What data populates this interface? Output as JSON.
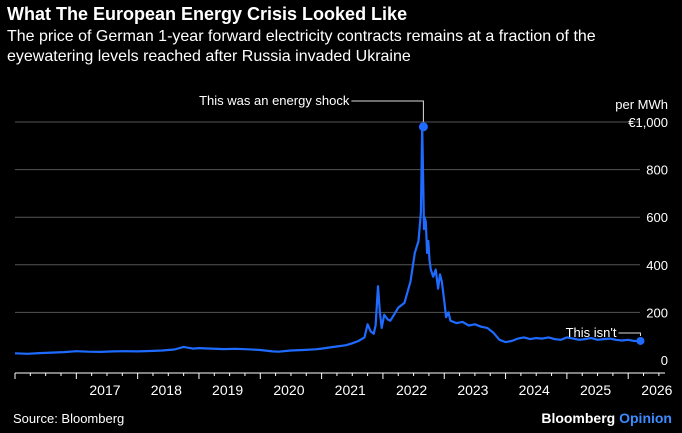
{
  "header": {
    "title": "What The European Energy Crisis Looked Like",
    "subtitle": "The price of German 1-year forward electricity contracts remains at a fraction of the eyewatering levels reached after Russia invaded Ukraine"
  },
  "footer": {
    "source": "Source: Bloomberg",
    "brand": "Bloomberg",
    "brand_suffix": "Opinion"
  },
  "colors": {
    "line": "#1f6bff",
    "grid": "#555555",
    "text": "#ffffff",
    "brand_accent": "#3c8cff"
  },
  "chart_data": {
    "type": "line",
    "title": "What The European Energy Crisis Looked Like",
    "unit_label": "per MWh",
    "ylim": [
      0,
      1000
    ],
    "xlim": [
      2016.0,
      2026.6
    ],
    "yticks": [
      0,
      200,
      400,
      600,
      800,
      1000
    ],
    "ytick_labels": [
      "0",
      "200",
      "400",
      "600",
      "800",
      "€1,000"
    ],
    "xticks": [
      2017,
      2018,
      2019,
      2020,
      2021,
      2022,
      2023,
      2024,
      2025,
      2026
    ],
    "xtick_labels": [
      "2017",
      "2018",
      "2019",
      "2020",
      "2021",
      "2022",
      "2023",
      "2024",
      "2025",
      "2026"
    ],
    "series": [
      {
        "name": "German 1-year forward electricity (€/MWh)",
        "x": [
          2016.0,
          2016.2,
          2016.4,
          2016.6,
          2016.8,
          2017.0,
          2017.2,
          2017.4,
          2017.6,
          2017.8,
          2018.0,
          2018.2,
          2018.4,
          2018.6,
          2018.75,
          2018.9,
          2019.0,
          2019.2,
          2019.4,
          2019.6,
          2019.8,
          2020.0,
          2020.2,
          2020.3,
          2020.5,
          2020.7,
          2020.9,
          2021.0,
          2021.2,
          2021.4,
          2021.5,
          2021.6,
          2021.7,
          2021.75,
          2021.8,
          2021.85,
          2021.88,
          2021.92,
          2021.95,
          2021.98,
          2022.02,
          2022.08,
          2022.12,
          2022.18,
          2022.25,
          2022.35,
          2022.45,
          2022.52,
          2022.58,
          2022.62,
          2022.64,
          2022.66,
          2022.67,
          2022.68,
          2022.7,
          2022.72,
          2022.74,
          2022.76,
          2022.78,
          2022.82,
          2022.86,
          2022.9,
          2022.93,
          2022.96,
          2023.0,
          2023.03,
          2023.07,
          2023.1,
          2023.2,
          2023.3,
          2023.4,
          2023.5,
          2023.6,
          2023.7,
          2023.8,
          2023.9,
          2024.0,
          2024.1,
          2024.2,
          2024.3,
          2024.4,
          2024.5,
          2024.6,
          2024.7,
          2024.8,
          2024.9,
          2025.0,
          2025.1,
          2025.2,
          2025.3,
          2025.4,
          2025.5,
          2025.6,
          2025.7,
          2025.8,
          2025.9,
          2026.0,
          2026.1,
          2026.2
        ],
        "y": [
          28,
          26,
          29,
          31,
          33,
          37,
          35,
          34,
          36,
          37,
          36,
          38,
          40,
          44,
          55,
          48,
          50,
          48,
          46,
          47,
          45,
          42,
          36,
          35,
          40,
          42,
          45,
          48,
          55,
          62,
          70,
          80,
          95,
          150,
          120,
          110,
          145,
          310,
          200,
          135,
          190,
          170,
          165,
          190,
          220,
          240,
          330,
          450,
          500,
          620,
          980,
          700,
          550,
          600,
          580,
          450,
          500,
          420,
          380,
          350,
          380,
          300,
          360,
          330,
          250,
          180,
          200,
          165,
          155,
          160,
          145,
          150,
          140,
          135,
          115,
          85,
          75,
          80,
          90,
          95,
          88,
          92,
          90,
          95,
          88,
          85,
          95,
          90,
          85,
          88,
          92,
          85,
          88,
          90,
          85,
          82,
          85,
          80,
          80
        ],
        "color": "#1f6bff"
      }
    ],
    "annotations": [
      {
        "text": "This was an energy shock",
        "x": 2022.66,
        "y": 980
      },
      {
        "text": "This isn't",
        "x": 2026.2,
        "y": 80
      }
    ]
  }
}
